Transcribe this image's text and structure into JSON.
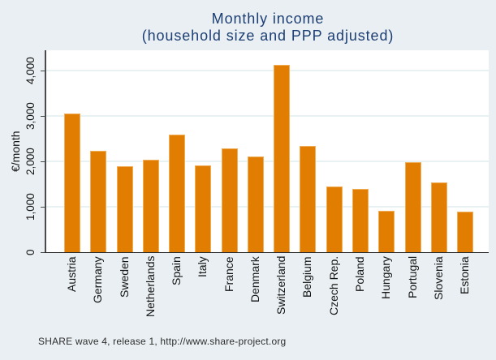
{
  "figure": {
    "title_line1": "Monthly income",
    "title_line2": "(household size and PPP adjusted)",
    "note": "SHARE wave 4, release 1, http://www.share-project.org"
  },
  "chart_data": {
    "type": "bar",
    "title": "Monthly income (household size and PPP adjusted)",
    "ylabel": "€/month",
    "xlabel": "",
    "categories": [
      "Austria",
      "Germany",
      "Sweden",
      "Netherlands",
      "Spain",
      "Italy",
      "France",
      "Denmark",
      "Switzerland",
      "Belgium",
      "Czech Rep.",
      "Poland",
      "Hungary",
      "Portugal",
      "Slovenia",
      "Estonia"
    ],
    "values": [
      3050,
      2240,
      1900,
      2030,
      2590,
      1910,
      2280,
      2110,
      4130,
      2340,
      1450,
      1400,
      920,
      1980,
      1530,
      900
    ],
    "ylim": [
      0,
      4450
    ],
    "yticks": [
      0,
      1000,
      2000,
      3000,
      4000
    ],
    "ytick_labels": [
      "0",
      "1,000",
      "2,000",
      "3,000",
      "4,000"
    ],
    "grid": true,
    "legend": "none",
    "annotation": "SHARE wave 4, release 1, http://www.share-project.org",
    "colors": {
      "bar_fill": "#e17d00",
      "bar_border": "#f0ae58",
      "background": "#e9eff2",
      "plot_background": "#ffffff",
      "gridline": "#e9f2f2",
      "title_text": "#1c3e73",
      "axis_line": "#4a4a4a",
      "label_text": "#141414"
    }
  }
}
